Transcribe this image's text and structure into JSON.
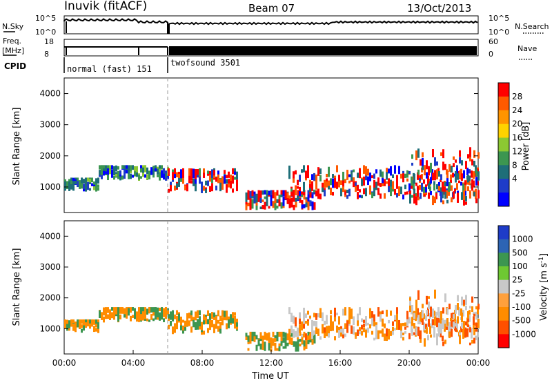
{
  "header": {
    "site": "Inuvik (fitACF)",
    "beam": "Beam 07",
    "date": "13/Oct/2013"
  },
  "side_labels": {
    "nsky": "N.Sky",
    "nsearch": "N.Search",
    "freq": "Freq.",
    "freq_unit": "[MHz]",
    "nave": "Nave",
    "cpid": "CPID"
  },
  "noise_ticks_left": [
    "10^5",
    "10^0"
  ],
  "noise_ticks_right": [
    "10^5",
    "10^0"
  ],
  "freq_ticks": [
    "18",
    "8"
  ],
  "nave_ticks": [
    "60",
    "0"
  ],
  "cpid_modes": [
    {
      "label": "normal (fast) 151",
      "start_h": 0,
      "end_h": 6
    },
    {
      "label": "twofsound 3501",
      "start_h": 6,
      "end_h": 24
    }
  ],
  "chart_data": [
    {
      "type": "heatmap",
      "quantity": "power",
      "ylabel": "Slant Range [km]",
      "ylim": [
        180,
        4500
      ],
      "yticks": [
        1000,
        2000,
        3000,
        4000
      ],
      "xlim_hours": [
        0,
        24
      ],
      "colorbar": {
        "label": "Power [dB]",
        "ticks": [
          "28",
          "24",
          "20",
          "16",
          "12",
          "8",
          "4"
        ],
        "colors": [
          "#ff0000",
          "#ff5a00",
          "#ff9400",
          "#ffd200",
          "#8cc832",
          "#3c9650",
          "#1e6e78",
          "#1e3cc8",
          "#0000ff"
        ]
      },
      "echo_bands": [
        {
          "start_h": 0.0,
          "end_h": 2.0,
          "range_km": [
            850,
            1300
          ]
        },
        {
          "start_h": 2.0,
          "end_h": 6.0,
          "range_km": [
            1200,
            1700
          ]
        },
        {
          "start_h": 6.0,
          "end_h": 10.0,
          "range_km": [
            800,
            1600
          ]
        },
        {
          "start_h": 10.5,
          "end_h": 14.5,
          "range_km": [
            250,
            900
          ]
        },
        {
          "start_h": 13.0,
          "end_h": 24.0,
          "range_km": [
            600,
            1700
          ]
        },
        {
          "start_h": 20.0,
          "end_h": 24.0,
          "range_km": [
            400,
            2400
          ]
        }
      ]
    },
    {
      "type": "heatmap",
      "quantity": "velocity",
      "ylabel": "Slant Range [km]",
      "ylim": [
        180,
        4500
      ],
      "yticks": [
        1000,
        2000,
        3000,
        4000
      ],
      "xlim_hours": [
        0,
        24
      ],
      "xticks": [
        "00:00",
        "04:00",
        "08:00",
        "12:00",
        "16:00",
        "20:00",
        "00:00"
      ],
      "xlabel": "Time UT",
      "colorbar": {
        "label": "Velocity [m s",
        "label_sup": "-1",
        "label_end": "]",
        "ticks": [
          "1000",
          "500",
          "100",
          "25",
          "-25",
          "-100",
          "-500",
          "-1000"
        ],
        "colors": [
          "#1e3cc8",
          "#2d64b4",
          "#3c9650",
          "#6ec832",
          "#c8c8c8",
          "#ffa03c",
          "#ff8c00",
          "#ff5000",
          "#ff0000"
        ]
      }
    }
  ]
}
